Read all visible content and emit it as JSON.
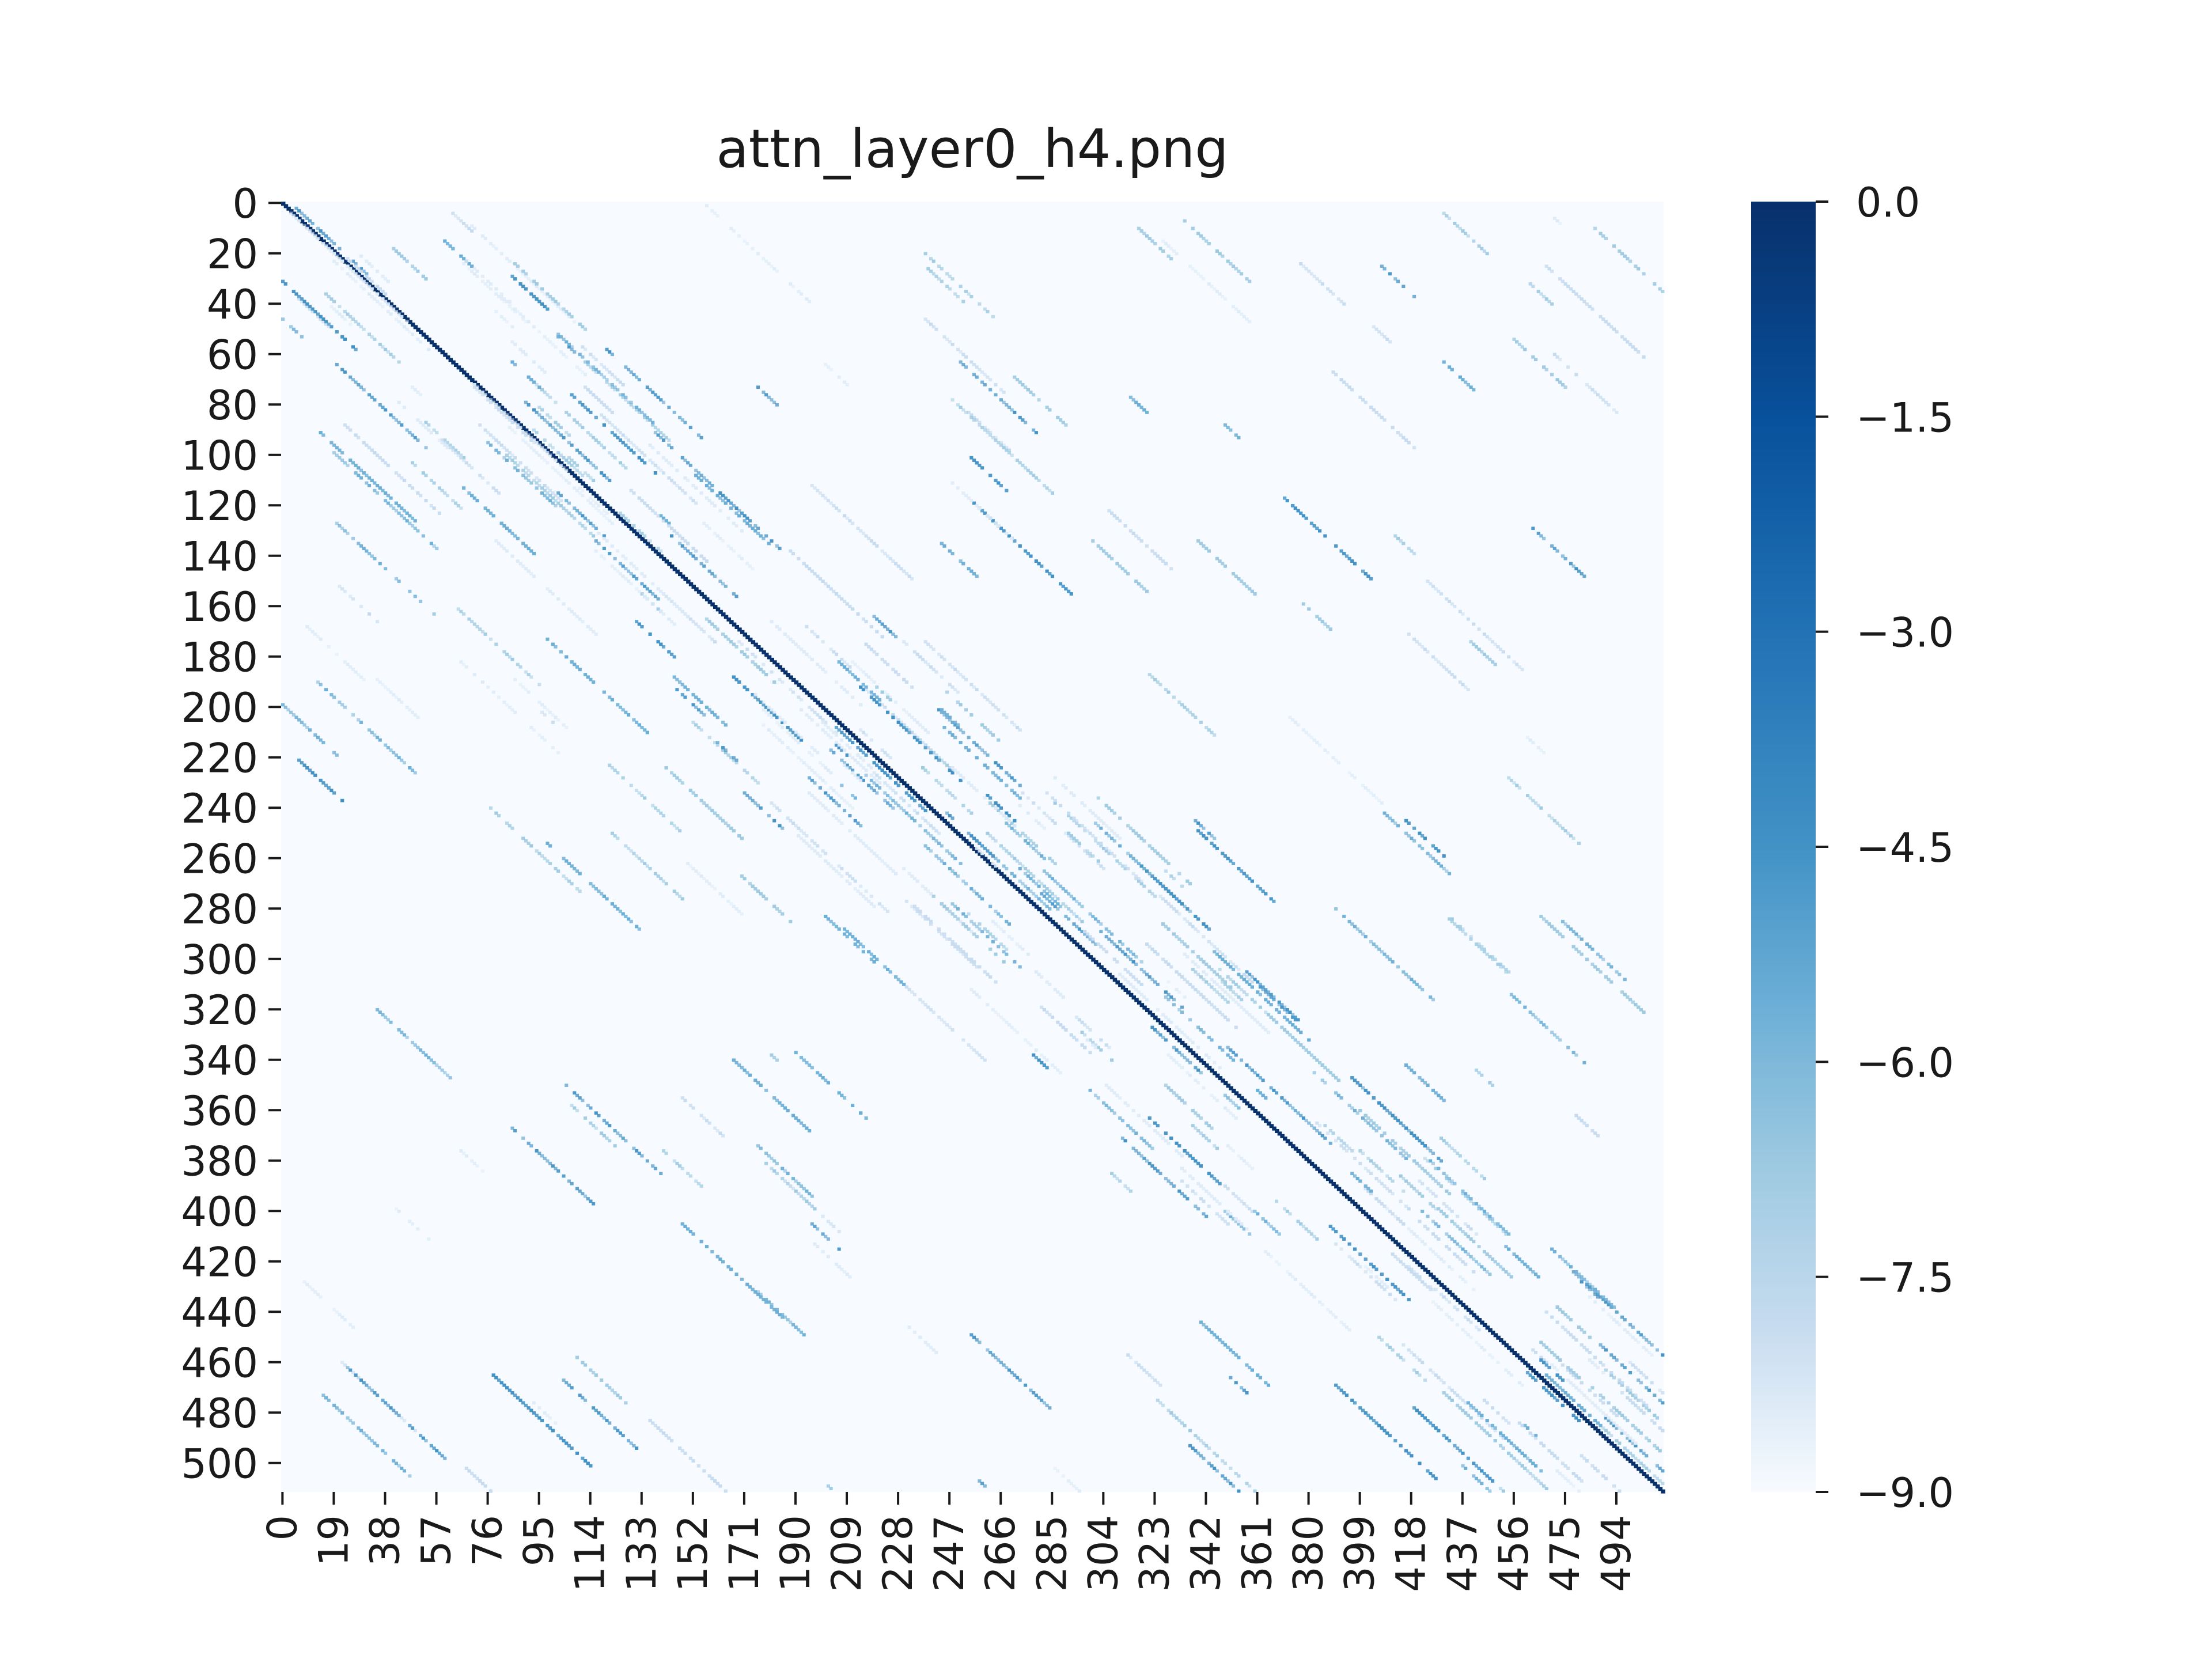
{
  "chart_data": {
    "type": "heatmap",
    "title": "attn_layer0_h4.png",
    "xlabel": "",
    "ylabel": "",
    "n_rows": 512,
    "n_cols": 512,
    "x_tick_labels": [
      "0",
      "19",
      "38",
      "57",
      "76",
      "95",
      "114",
      "133",
      "152",
      "171",
      "190",
      "209",
      "228",
      "247",
      "266",
      "285",
      "304",
      "323",
      "342",
      "361",
      "380",
      "399",
      "418",
      "437",
      "456",
      "475",
      "494"
    ],
    "y_tick_labels": [
      "0",
      "20",
      "40",
      "60",
      "80",
      "100",
      "120",
      "140",
      "160",
      "180",
      "200",
      "220",
      "240",
      "260",
      "280",
      "300",
      "320",
      "340",
      "360",
      "380",
      "400",
      "420",
      "440",
      "460",
      "480",
      "500"
    ],
    "colorbar": {
      "range": [
        -9.0,
        0.0
      ],
      "tick_values": [
        0.0,
        -1.5,
        -3.0,
        -4.5,
        -6.0,
        -7.5,
        -9.0
      ],
      "tick_labels": [
        "0.0",
        "−1.5",
        "−3.0",
        "−4.5",
        "−6.0",
        "−7.5",
        "−9.0"
      ],
      "colormap": "Blues"
    },
    "pattern": {
      "main_diagonal_value": 0.0,
      "background_value": -9.0,
      "description_values": "strong diagonal; scattered faint off-diagonal stripes parallel to the diagonal"
    }
  }
}
